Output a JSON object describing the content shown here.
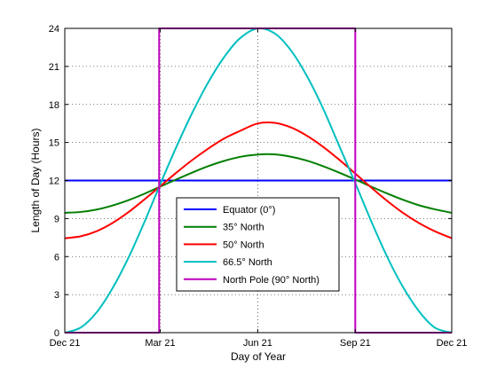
{
  "chart_data": {
    "type": "line",
    "title": "",
    "xlabel": "Day of Year",
    "ylabel": "Length of Day (Hours)",
    "xlim": [
      0,
      365
    ],
    "ylim": [
      0,
      24
    ],
    "x_ticks": [
      {
        "value": 0,
        "label": "Dec 21"
      },
      {
        "value": 90,
        "label": "Mar 21"
      },
      {
        "value": 182,
        "label": "Jun 21"
      },
      {
        "value": 274,
        "label": "Sep 21"
      },
      {
        "value": 365,
        "label": "Dec 21"
      }
    ],
    "y_ticks": [
      0,
      3,
      6,
      9,
      12,
      15,
      18,
      21,
      24
    ],
    "grid": true,
    "legend_position": "lower-center",
    "series": [
      {
        "name": "Equator (0°)",
        "color": "#0000ff",
        "x": [
          0,
          365
        ],
        "y": [
          12,
          12
        ]
      },
      {
        "name": "35° North",
        "color": "#007f00",
        "x": [
          0,
          15,
          30,
          45,
          60,
          75,
          90,
          105,
          120,
          135,
          150,
          165,
          182,
          198,
          213,
          228,
          243,
          258,
          274,
          289,
          304,
          319,
          334,
          349,
          365
        ],
        "y": [
          9.45,
          9.52,
          9.71,
          10.03,
          10.45,
          10.95,
          11.52,
          12.08,
          12.62,
          13.12,
          13.54,
          13.86,
          14.05,
          14.06,
          13.88,
          13.58,
          13.15,
          12.65,
          12.08,
          11.52,
          10.98,
          10.48,
          10.05,
          9.73,
          9.45
        ]
      },
      {
        "name": "50° North",
        "color": "#ff0000",
        "x": [
          0,
          15,
          30,
          45,
          60,
          75,
          90,
          105,
          120,
          135,
          150,
          165,
          182,
          198,
          213,
          228,
          243,
          258,
          274,
          289,
          304,
          319,
          334,
          349,
          365
        ],
        "y": [
          7.45,
          7.6,
          8.0,
          8.65,
          9.5,
          10.5,
          11.55,
          12.6,
          13.6,
          14.5,
          15.3,
          15.9,
          16.5,
          16.55,
          16.2,
          15.55,
          14.7,
          13.7,
          12.55,
          11.45,
          10.4,
          9.45,
          8.65,
          8.0,
          7.45
        ]
      },
      {
        "name": "66.5° North",
        "color": "#00bfbf",
        "x": [
          0,
          15,
          30,
          45,
          60,
          75,
          90,
          105,
          120,
          135,
          150,
          165,
          182,
          198,
          213,
          228,
          243,
          258,
          274,
          289,
          304,
          319,
          334,
          349,
          365
        ],
        "y": [
          0.0,
          0.4,
          1.6,
          3.5,
          5.9,
          8.7,
          11.7,
          14.6,
          17.3,
          19.7,
          21.7,
          23.2,
          24.0,
          23.6,
          22.3,
          20.3,
          17.8,
          14.9,
          11.8,
          8.8,
          6.0,
          3.6,
          1.7,
          0.4,
          0.0
        ]
      },
      {
        "name": "North Pole (90° North)",
        "color": "#bf00bf",
        "x": [
          0,
          89,
          89,
          274,
          274,
          365
        ],
        "y": [
          0,
          0,
          24,
          24,
          0,
          0
        ]
      }
    ]
  }
}
